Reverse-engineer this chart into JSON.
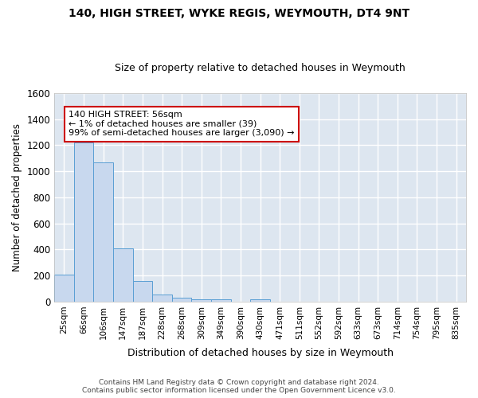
{
  "title": "140, HIGH STREET, WYKE REGIS, WEYMOUTH, DT4 9NT",
  "subtitle": "Size of property relative to detached houses in Weymouth",
  "xlabel": "Distribution of detached houses by size in Weymouth",
  "ylabel": "Number of detached properties",
  "categories": [
    "25sqm",
    "66sqm",
    "106sqm",
    "147sqm",
    "187sqm",
    "228sqm",
    "268sqm",
    "309sqm",
    "349sqm",
    "390sqm",
    "430sqm",
    "471sqm",
    "511sqm",
    "552sqm",
    "592sqm",
    "633sqm",
    "673sqm",
    "714sqm",
    "754sqm",
    "795sqm",
    "835sqm"
  ],
  "values": [
    205,
    1220,
    1070,
    410,
    160,
    55,
    30,
    15,
    15,
    0,
    15,
    0,
    0,
    0,
    0,
    0,
    0,
    0,
    0,
    0,
    0
  ],
  "bar_color": "#c8d8ee",
  "bar_edge_color": "#5a9fd4",
  "background_color": "#dde6f0",
  "grid_color": "#ffffff",
  "fig_background": "#ffffff",
  "ylim": [
    0,
    1600
  ],
  "yticks": [
    0,
    200,
    400,
    600,
    800,
    1000,
    1200,
    1400,
    1600
  ],
  "annotation_text": "140 HIGH STREET: 56sqm\n← 1% of detached houses are smaller (39)\n99% of semi-detached houses are larger (3,090) →",
  "annotation_box_edgecolor": "#cc0000",
  "annotation_fill_color": "#ffffff",
  "footer_line1": "Contains HM Land Registry data © Crown copyright and database right 2024.",
  "footer_line2": "Contains public sector information licensed under the Open Government Licence v3.0.",
  "title_fontsize": 10,
  "subtitle_fontsize": 9
}
